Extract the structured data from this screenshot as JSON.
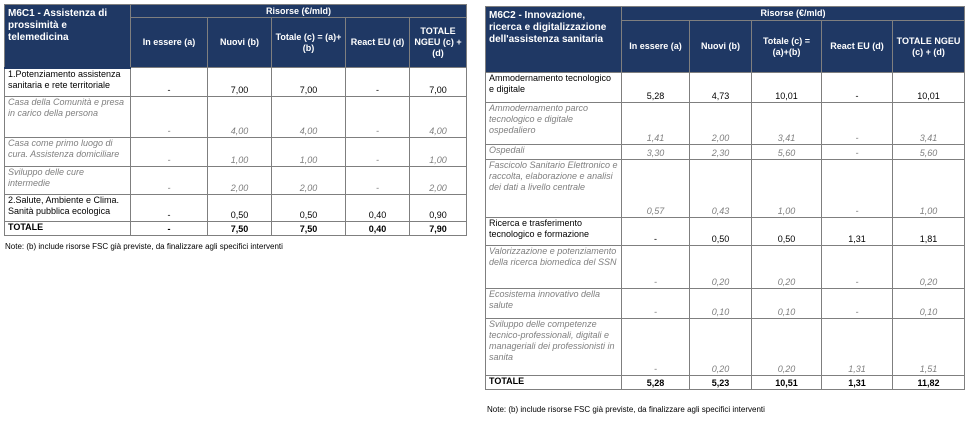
{
  "left": {
    "title": "M6C1 - Assistenza di prossimità e telemedicina",
    "resources_header": "Risorse (€/mld)",
    "columns": [
      "In essere (a)",
      "Nuovi (b)",
      "Totale (c) = (a)+(b)",
      "React EU (d)",
      "TOTALE NGEU (c) + (d)"
    ],
    "rows": [
      {
        "label": "1.Potenziamento assistenza sanitaria e rete territoriale",
        "a": "-",
        "b": "7,00",
        "c": "7,00",
        "d": "-",
        "e": "7,00"
      },
      {
        "label": "Casa della Comunità e presa in carico della persona",
        "a": "-",
        "b": "4,00",
        "c": "4,00",
        "d": "-",
        "e": "4,00"
      },
      {
        "label": "Casa come primo luogo di cura. Assistenza domiciliare",
        "a": "-",
        "b": "1,00",
        "c": "1,00",
        "d": "-",
        "e": "1,00"
      },
      {
        "label": "Sviluppo delle cure intermedie",
        "a": "-",
        "b": "2,00",
        "c": "2,00",
        "d": "-",
        "e": "2,00"
      },
      {
        "label": "2.Salute, Ambiente e Clima. Sanità pubblica ecologica",
        "a": "-",
        "b": "0,50",
        "c": "0,50",
        "d": "0,40",
        "e": "0,90"
      }
    ],
    "total": {
      "label": "TOTALE",
      "a": "-",
      "b": "7,50",
      "c": "7,50",
      "d": "0,40",
      "e": "7,90"
    },
    "note": "Note: (b) include risorse FSC già previste, da finalizzare agli specifici interventi"
  },
  "right": {
    "title": "M6C2 - Innovazione, ricerca e digitalizzazione dell'assistenza sanitaria",
    "resources_header": "Risorse (€/mld)",
    "columns": [
      "In essere (a)",
      "Nuovi (b)",
      "Totale (c) = (a)+(b)",
      "React EU (d)",
      "TOTALE NGEU (c) + (d)"
    ],
    "rows": [
      {
        "label": "Ammodernamento tecnologico e digitale",
        "a": "5,28",
        "b": "4,73",
        "c": "10,01",
        "d": "-",
        "e": "10,01"
      },
      {
        "label": "Ammodernamento parco tecnologico e digitale ospedaliero",
        "a": "1,41",
        "b": "2,00",
        "c": "3,41",
        "d": "-",
        "e": "3,41"
      },
      {
        "label": "Ospedali",
        "a": "3,30",
        "b": "2,30",
        "c": "5,60",
        "d": "-",
        "e": "5,60"
      },
      {
        "label": "Fascicolo Sanitario Elettronico e raccolta, elaborazione e analisi dei dati a livello centrale",
        "a": "0,57",
        "b": "0,43",
        "c": "1,00",
        "d": "-",
        "e": "1,00"
      },
      {
        "label": "Ricerca e trasferimento tecnologico e formazione",
        "a": "-",
        "b": "0,50",
        "c": "0,50",
        "d": "1,31",
        "e": "1,81"
      },
      {
        "label": "Valorizzazione e potenziamento della ricerca biomedica del SSN",
        "a": "-",
        "b": "0,20",
        "c": "0,20",
        "d": "-",
        "e": "0,20"
      },
      {
        "label": "Ecosistema innovativo della salute",
        "a": "-",
        "b": "0,10",
        "c": "0,10",
        "d": "-",
        "e": "0,10"
      },
      {
        "label": "Sviluppo delle competenze tecnico-professionali, digitali e manageriali dei professionisti in sanita",
        "a": "-",
        "b": "0,20",
        "c": "0,20",
        "d": "1,31",
        "e": "1,51"
      }
    ],
    "total": {
      "label": "TOTALE",
      "a": "5,28",
      "b": "5,23",
      "c": "10,51",
      "d": "1,31",
      "e": "11,82"
    },
    "note": "Note: (b) include risorse FSC già previste, da finalizzare agli specifici interventi"
  }
}
